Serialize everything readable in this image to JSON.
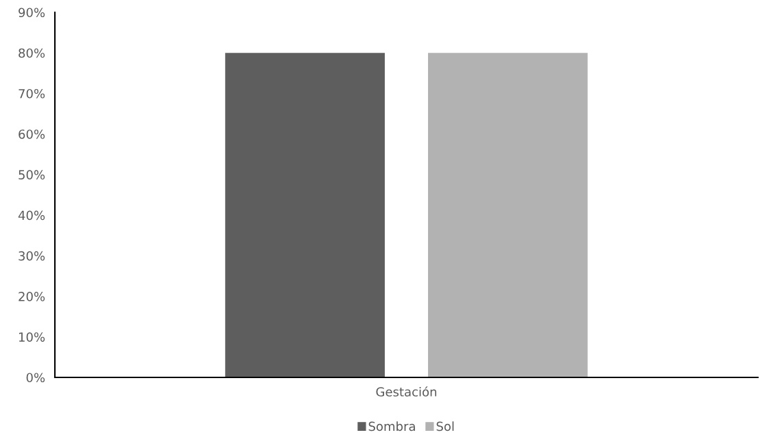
{
  "chart_data": {
    "type": "bar",
    "categories": [
      "Gestación"
    ],
    "series": [
      {
        "name": "Sombra",
        "color": "#5e5e5e",
        "values": [
          80
        ]
      },
      {
        "name": "Sol",
        "color": "#b2b2b2",
        "values": [
          80
        ]
      }
    ],
    "ylim": [
      0,
      90
    ],
    "yticks": [
      {
        "value": 0,
        "label": "0%"
      },
      {
        "value": 10,
        "label": "10%"
      },
      {
        "value": 20,
        "label": "20%"
      },
      {
        "value": 30,
        "label": "30%"
      },
      {
        "value": 40,
        "label": "40%"
      },
      {
        "value": 50,
        "label": "50%"
      },
      {
        "value": 60,
        "label": "60%"
      },
      {
        "value": 70,
        "label": "70%"
      },
      {
        "value": 80,
        "label": "80%"
      },
      {
        "value": 90,
        "label": "90%"
      }
    ],
    "grid": false,
    "legend": "bottom"
  }
}
